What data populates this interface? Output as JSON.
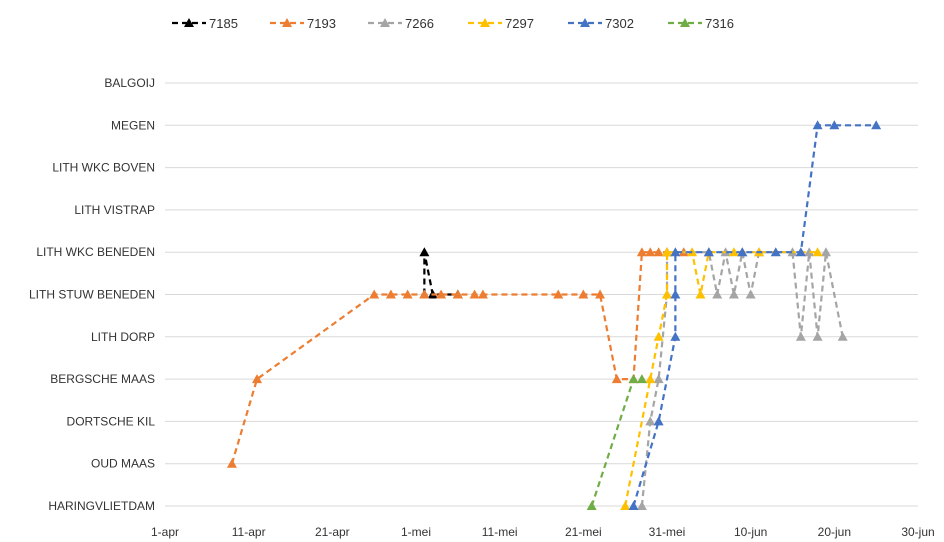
{
  "chart_data": {
    "type": "line",
    "title": "",
    "xlabel": "",
    "ylabel": "",
    "x_ticks": [
      "1-apr",
      "11-apr",
      "21-apr",
      "1-mei",
      "11-mei",
      "21-mei",
      "31-mei",
      "10-jun",
      "20-jun",
      "30-jun"
    ],
    "y_categories": [
      "HARINGVLIETDAM",
      "OUD MAAS",
      "DORTSCHE KIL",
      "BERGSCHE MAAS",
      "LITH DORP",
      "LITH STUW BENEDEN",
      "LITH WKC BENEDEN",
      "LITH VISTRAP",
      "LITH WKC BOVEN",
      "MEGEN",
      "BALGOIJ"
    ],
    "x_range": [
      "1-apr",
      "30-jun"
    ],
    "grid": true,
    "legend_position": "top",
    "series": [
      {
        "name": "7185",
        "color": "#000000",
        "points": [
          {
            "x": "2-mei",
            "y": "LITH STUW BENEDEN"
          },
          {
            "x": "2-mei",
            "y": "LITH WKC BENEDEN"
          },
          {
            "x": "3-mei",
            "y": "LITH STUW BENEDEN"
          },
          {
            "x": "6-mei",
            "y": "LITH STUW BENEDEN"
          }
        ]
      },
      {
        "name": "7193",
        "color": "#ED7D31",
        "points": [
          {
            "x": "9-apr",
            "y": "OUD MAAS"
          },
          {
            "x": "12-apr",
            "y": "BERGSCHE MAAS"
          },
          {
            "x": "26-apr",
            "y": "LITH STUW BENEDEN"
          },
          {
            "x": "28-apr",
            "y": "LITH STUW BENEDEN"
          },
          {
            "x": "30-apr",
            "y": "LITH STUW BENEDEN"
          },
          {
            "x": "2-mei",
            "y": "LITH STUW BENEDEN"
          },
          {
            "x": "4-mei",
            "y": "LITH STUW BENEDEN"
          },
          {
            "x": "6-mei",
            "y": "LITH STUW BENEDEN"
          },
          {
            "x": "8-mei",
            "y": "LITH STUW BENEDEN"
          },
          {
            "x": "9-mei",
            "y": "LITH STUW BENEDEN"
          },
          {
            "x": "18-mei",
            "y": "LITH STUW BENEDEN"
          },
          {
            "x": "21-mei",
            "y": "LITH STUW BENEDEN"
          },
          {
            "x": "23-mei",
            "y": "LITH STUW BENEDEN"
          },
          {
            "x": "25-mei",
            "y": "BERGSCHE MAAS"
          },
          {
            "x": "27-mei",
            "y": "BERGSCHE MAAS"
          },
          {
            "x": "28-mei",
            "y": "LITH WKC BENEDEN"
          },
          {
            "x": "29-mei",
            "y": "LITH WKC BENEDEN"
          },
          {
            "x": "30-mei",
            "y": "LITH WKC BENEDEN"
          },
          {
            "x": "31-mei",
            "y": "LITH WKC BENEDEN"
          },
          {
            "x": "2-jun",
            "y": "LITH WKC BENEDEN"
          }
        ]
      },
      {
        "name": "7266",
        "color": "#A5A5A5",
        "points": [
          {
            "x": "28-mei",
            "y": "HARINGVLIETDAM"
          },
          {
            "x": "29-mei",
            "y": "DORTSCHE KIL"
          },
          {
            "x": "30-mei",
            "y": "BERGSCHE MAAS"
          },
          {
            "x": "31-mei",
            "y": "LITH STUW BENEDEN"
          },
          {
            "x": "31-mei",
            "y": "LITH WKC BENEDEN"
          },
          {
            "x": "5-jun",
            "y": "LITH WKC BENEDEN"
          },
          {
            "x": "6-jun",
            "y": "LITH STUW BENEDEN"
          },
          {
            "x": "7-jun",
            "y": "LITH WKC BENEDEN"
          },
          {
            "x": "8-jun",
            "y": "LITH STUW BENEDEN"
          },
          {
            "x": "9-jun",
            "y": "LITH WKC BENEDEN"
          },
          {
            "x": "10-jun",
            "y": "LITH STUW BENEDEN"
          },
          {
            "x": "11-jun",
            "y": "LITH WKC BENEDEN"
          },
          {
            "x": "15-jun",
            "y": "LITH WKC BENEDEN"
          },
          {
            "x": "16-jun",
            "y": "LITH DORP"
          },
          {
            "x": "17-jun",
            "y": "LITH WKC BENEDEN"
          },
          {
            "x": "18-jun",
            "y": "LITH DORP"
          },
          {
            "x": "19-jun",
            "y": "LITH WKC BENEDEN"
          },
          {
            "x": "21-jun",
            "y": "LITH DORP"
          }
        ]
      },
      {
        "name": "7297",
        "color": "#FFC000",
        "points": [
          {
            "x": "26-mei",
            "y": "HARINGVLIETDAM"
          },
          {
            "x": "29-mei",
            "y": "BERGSCHE MAAS"
          },
          {
            "x": "30-mei",
            "y": "LITH DORP"
          },
          {
            "x": "31-mei",
            "y": "LITH STUW BENEDEN"
          },
          {
            "x": "31-mei",
            "y": "LITH WKC BENEDEN"
          },
          {
            "x": "3-jun",
            "y": "LITH WKC BENEDEN"
          },
          {
            "x": "4-jun",
            "y": "LITH STUW BENEDEN"
          },
          {
            "x": "5-jun",
            "y": "LITH WKC BENEDEN"
          },
          {
            "x": "8-jun",
            "y": "LITH WKC BENEDEN"
          },
          {
            "x": "11-jun",
            "y": "LITH WKC BENEDEN"
          },
          {
            "x": "18-jun",
            "y": "LITH WKC BENEDEN"
          }
        ]
      },
      {
        "name": "7302",
        "color": "#4472C4",
        "points": [
          {
            "x": "27-mei",
            "y": "HARINGVLIETDAM"
          },
          {
            "x": "30-mei",
            "y": "DORTSCHE KIL"
          },
          {
            "x": "1-jun",
            "y": "LITH DORP"
          },
          {
            "x": "1-jun",
            "y": "LITH STUW BENEDEN"
          },
          {
            "x": "1-jun",
            "y": "LITH WKC BENEDEN"
          },
          {
            "x": "5-jun",
            "y": "LITH WKC BENEDEN"
          },
          {
            "x": "9-jun",
            "y": "LITH WKC BENEDEN"
          },
          {
            "x": "13-jun",
            "y": "LITH WKC BENEDEN"
          },
          {
            "x": "16-jun",
            "y": "LITH WKC BENEDEN"
          },
          {
            "x": "18-jun",
            "y": "MEGEN"
          },
          {
            "x": "20-jun",
            "y": "MEGEN"
          },
          {
            "x": "25-jun",
            "y": "MEGEN"
          }
        ]
      },
      {
        "name": "7316",
        "color": "#70AD47",
        "points": [
          {
            "x": "22-mei",
            "y": "HARINGVLIETDAM"
          },
          {
            "x": "27-mei",
            "y": "BERGSCHE MAAS"
          },
          {
            "x": "28-mei",
            "y": "BERGSCHE MAAS"
          }
        ]
      }
    ]
  }
}
